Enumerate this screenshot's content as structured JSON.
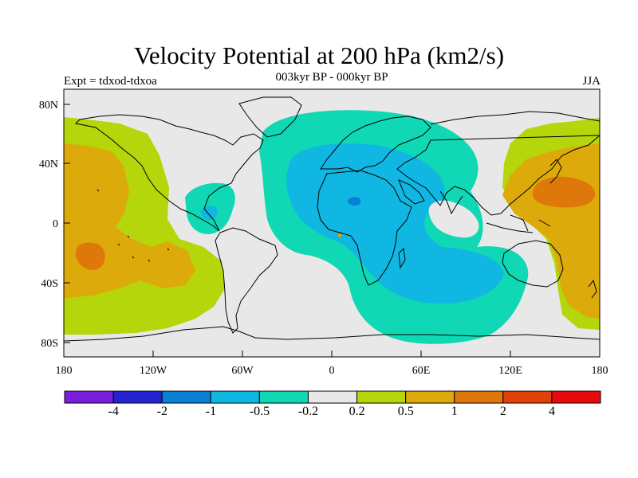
{
  "header": {
    "title": "Velocity Potential at 200 hPa (km2/s)",
    "subtitle": "003kyr BP - 000kyr BP",
    "left_label": "Expt = tdxod-tdxoa",
    "right_label": "JJA"
  },
  "axes": {
    "lat_ticks": [
      "80N",
      "40N",
      "0",
      "40S",
      "80S"
    ],
    "lon_ticks": [
      "180",
      "120W",
      "60W",
      "0",
      "60E",
      "120E",
      "180"
    ]
  },
  "colorbar": {
    "colors": [
      "#7a1fd9",
      "#2323cf",
      "#0a7fd4",
      "#10b7e2",
      "#10d8b4",
      "#e8e8e8",
      "#b4d60a",
      "#dcaa0a",
      "#de780a",
      "#e0410a",
      "#e60a0a"
    ],
    "labels": [
      "-4",
      "-2",
      "-1",
      "-0.5",
      "-0.2",
      "0.2",
      "0.5",
      "1",
      "2",
      "4"
    ]
  },
  "map": {
    "ocean_color": "#e8e8e8",
    "coastline_color": "#000000"
  }
}
